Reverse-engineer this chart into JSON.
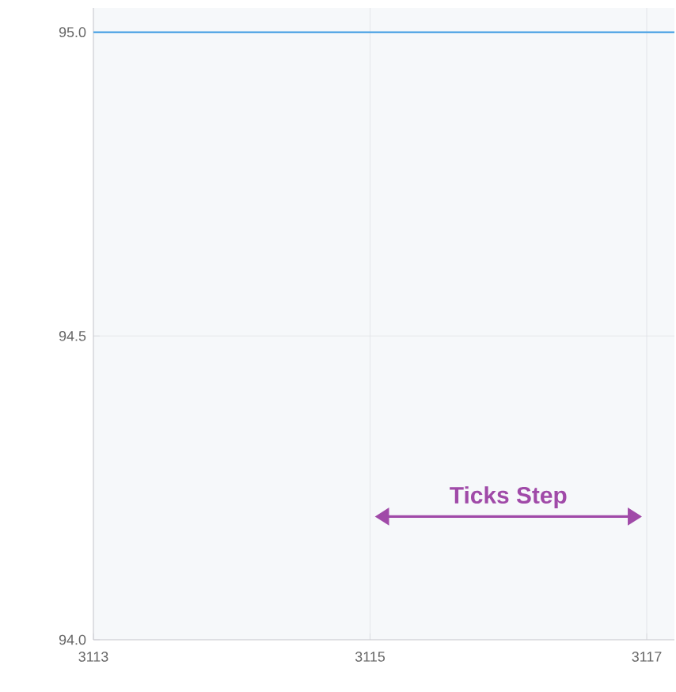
{
  "chart_data": {
    "type": "line",
    "x": [
      3113,
      3117.2
    ],
    "series": [
      {
        "color": "#5aa9e6",
        "values": [
          95.0,
          95.0
        ]
      }
    ],
    "xlim": [
      3113,
      3117.2
    ],
    "ylim": [
      94,
      95.04
    ],
    "xticks": [
      3113,
      3115,
      3117
    ],
    "yticks": [
      {
        "value": 94.0,
        "label": "94.0"
      },
      {
        "value": 94.5,
        "label": "94.5"
      },
      {
        "value": 95.0,
        "label": "95.0"
      }
    ],
    "grid": true,
    "marker": "none",
    "annotations": [
      "Ticks Step"
    ]
  }
}
